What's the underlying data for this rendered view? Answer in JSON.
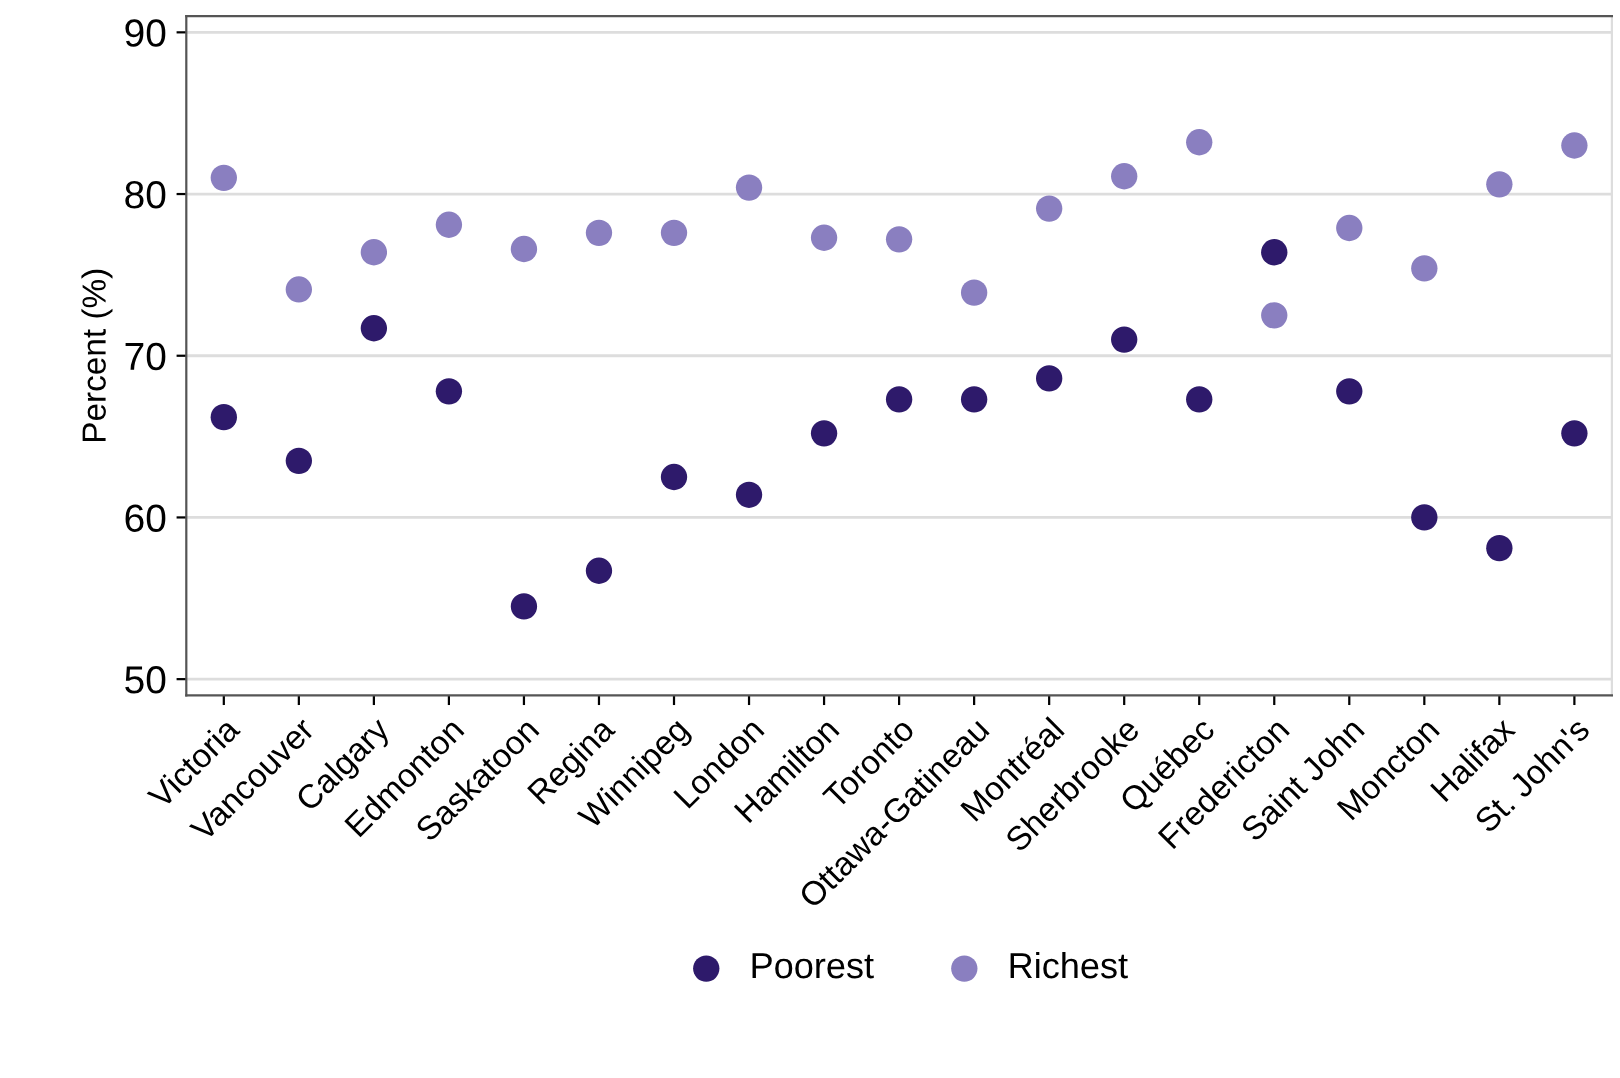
{
  "chart_data": {
    "type": "scatter",
    "ylabel": "Percent (%)",
    "categories": [
      "Victoria",
      "Vancouver",
      "Calgary",
      "Edmonton",
      "Saskatoon",
      "Regina",
      "Winnipeg",
      "London",
      "Hamilton",
      "Toronto",
      "Ottawa-Gatineau",
      "Montréal",
      "Sherbrooke",
      "Québec",
      "Fredericton",
      "Saint John",
      "Moncton",
      "Halifax",
      "St. John's"
    ],
    "series": [
      {
        "name": "Poorest",
        "color": "#2e1a6b",
        "values": [
          66.2,
          63.5,
          71.7,
          67.8,
          54.5,
          56.7,
          62.5,
          61.4,
          65.2,
          67.3,
          67.3,
          68.6,
          71.0,
          67.3,
          76.4,
          67.8,
          60.0,
          58.1,
          65.2
        ]
      },
      {
        "name": "Richest",
        "color": "#8a7fc0",
        "values": [
          81.0,
          74.1,
          76.4,
          78.1,
          76.6,
          77.6,
          77.6,
          80.4,
          77.3,
          77.2,
          73.9,
          79.1,
          81.1,
          83.2,
          72.5,
          77.9,
          75.4,
          80.6,
          83.0
        ]
      }
    ],
    "ylim": [
      49,
      91
    ],
    "yticks": [
      50,
      60,
      70,
      80,
      90
    ],
    "grid": "y",
    "legend": "bottom",
    "marker": "circle"
  }
}
